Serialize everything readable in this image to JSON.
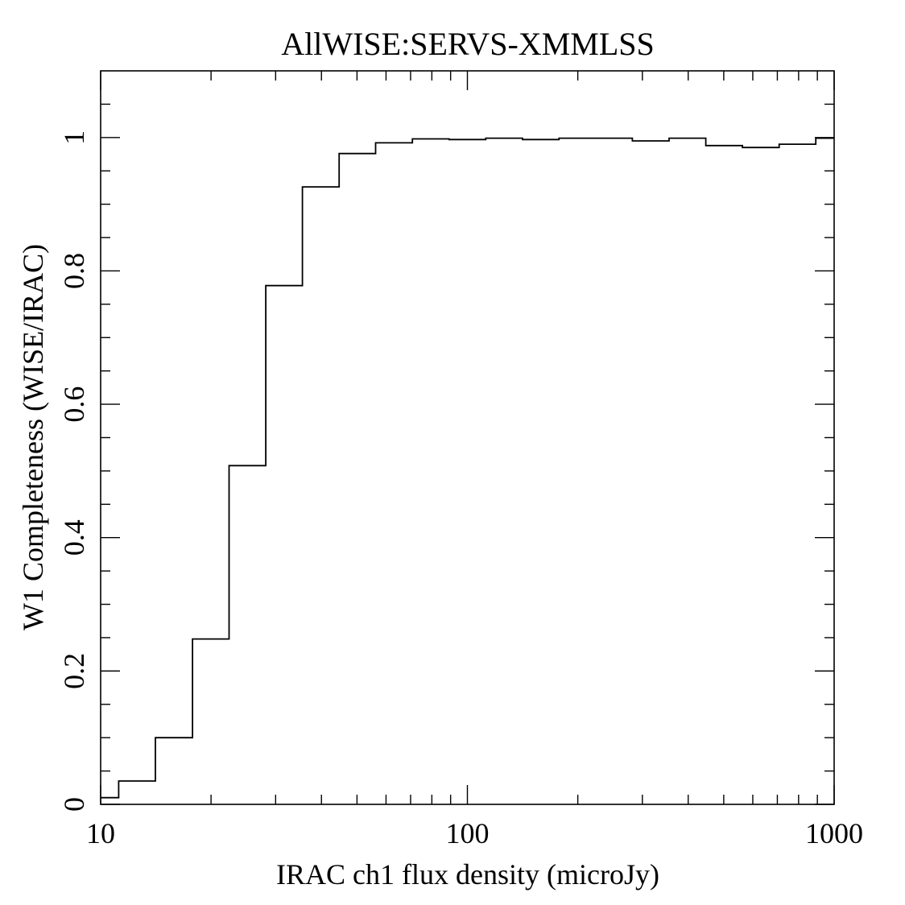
{
  "chart_data": {
    "type": "line",
    "title": "AllWISE:SERVS-XMMLSS",
    "xlabel": "IRAC ch1 flux density (microJy)",
    "ylabel": "W1 Completeness (WISE/IRAC)",
    "x_scale": "log",
    "xlim": [
      10,
      1000
    ],
    "ylim": [
      0,
      1.1
    ],
    "grid": false,
    "legend": "none",
    "line_color": "#000000",
    "x_ticks": [
      "10",
      "100",
      "1000"
    ],
    "y_ticks": [
      "0",
      "0.2",
      "0.4",
      "0.6",
      "0.8",
      "1"
    ],
    "series": [
      {
        "bin_edges": [
          10,
          11.2,
          14.1,
          17.8,
          22.4,
          28.2,
          35.5,
          44.7,
          56.2,
          70.8,
          89.1,
          112.2,
          141.3,
          177.8,
          223.9,
          281.8,
          354.8,
          446.7,
          562.3,
          707.9,
          891.3,
          1000
        ],
        "values": [
          0.01,
          0.035,
          0.1,
          0.248,
          0.508,
          0.778,
          0.926,
          0.976,
          0.992,
          0.998,
          0.997,
          0.999,
          0.997,
          0.999,
          0.999,
          0.995,
          0.999,
          0.988,
          0.985,
          0.99,
          0.999
        ]
      }
    ]
  }
}
